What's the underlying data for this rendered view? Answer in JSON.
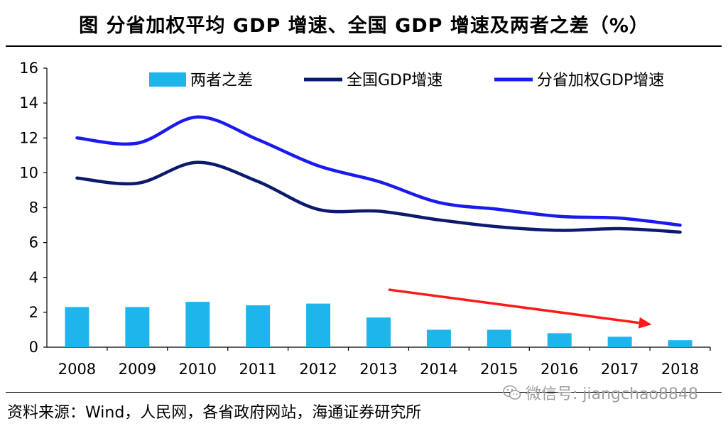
{
  "title": "图   分省加权平均 GDP 增速、全国 GDP 增速及两者之差（%）",
  "source": "资料来源：Wind，人民网，各省政府网站，海通证券研究所",
  "watermark": "微信号: jiangchao8848",
  "colors": {
    "diff": "#1eb4ec",
    "national": "#0c1a6e",
    "provincial": "#1a1aee",
    "arrow": "#ff1a1a"
  },
  "chart_data": {
    "type": "bar+line",
    "categories": [
      "2008",
      "2009",
      "2010",
      "2011",
      "2012",
      "2013",
      "2014",
      "2015",
      "2016",
      "2017",
      "2018"
    ],
    "ylim": [
      0,
      16
    ],
    "yticks": [
      0,
      2,
      4,
      6,
      8,
      10,
      12,
      14,
      16
    ],
    "series": [
      {
        "name": "两者之差",
        "kind": "bar",
        "values": [
          2.3,
          2.3,
          2.6,
          2.4,
          2.5,
          1.7,
          1.0,
          1.0,
          0.8,
          0.6,
          0.4
        ]
      },
      {
        "name": "全国GDP增速",
        "kind": "line",
        "values": [
          9.7,
          9.4,
          10.6,
          9.5,
          7.9,
          7.8,
          7.3,
          6.9,
          6.7,
          6.8,
          6.6
        ]
      },
      {
        "name": "分省加权GDP增速",
        "kind": "line",
        "values": [
          12.0,
          11.7,
          13.2,
          11.9,
          10.4,
          9.5,
          8.3,
          7.9,
          7.5,
          7.4,
          7.0
        ]
      }
    ],
    "annotation": {
      "type": "arrow",
      "meaning": "downward trend of the difference",
      "from": [
        "2013",
        3.3
      ],
      "to": [
        "2017",
        1.3
      ]
    }
  }
}
